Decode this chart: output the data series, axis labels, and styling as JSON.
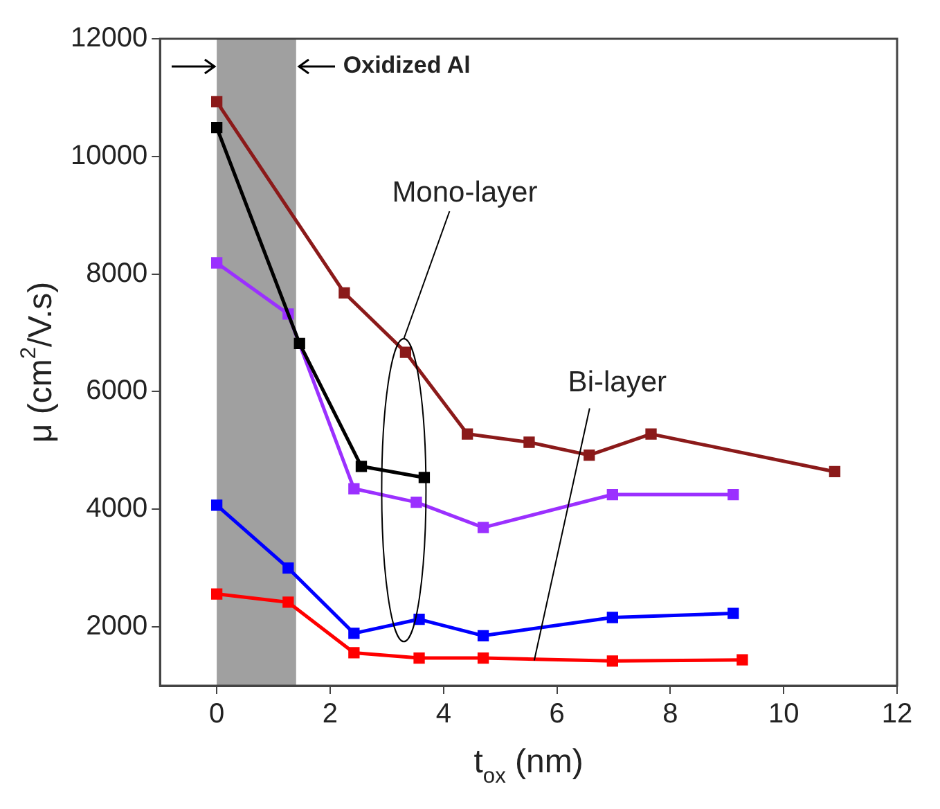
{
  "chart_data": {
    "type": "line",
    "xlabel": "t$_{ox}$ (nm)",
    "ylabel": "μ (cm$^{2}$/V.s)",
    "xlim": [
      -1,
      12
    ],
    "xticks": [
      0,
      2,
      4,
      6,
      8,
      10,
      12
    ],
    "ylim": [
      1000,
      12000
    ],
    "yticks": [
      2000,
      4000,
      6000,
      8000,
      10000,
      12000
    ],
    "grid": false,
    "legend": false,
    "marker": "square",
    "line_style": "solid",
    "bands": [
      {
        "axis": "x",
        "from": 0,
        "to": 1.4,
        "label": "Oxidized Al",
        "color": "#a0a0a0"
      }
    ],
    "annotations": [
      {
        "text": "Mono-layer",
        "x": 3.3,
        "y": 6900
      },
      {
        "text": "Bi-layer",
        "x": 5.6,
        "y": 1430
      }
    ],
    "series": [
      {
        "color": "#8b1a1a",
        "x": [
          0,
          2.25,
          3.33,
          4.42,
          5.51,
          6.57,
          7.66,
          10.9
        ],
        "values": [
          10930,
          7680,
          6670,
          5280,
          5140,
          4920,
          5280,
          4640
        ]
      },
      {
        "color": "#000000",
        "x": [
          0,
          1.46,
          2.55,
          3.66
        ],
        "values": [
          10490,
          6820,
          4730,
          4540
        ]
      },
      {
        "color": "#9b30ff",
        "x": [
          0,
          1.26,
          2.42,
          3.52,
          4.7,
          6.98,
          9.11
        ],
        "values": [
          8190,
          7320,
          4350,
          4120,
          3690,
          4250,
          4250
        ]
      },
      {
        "color": "#0000ff",
        "x": [
          0,
          1.26,
          2.42,
          3.57,
          4.7,
          6.98,
          9.11
        ],
        "values": [
          4070,
          3000,
          1890,
          2130,
          1850,
          2160,
          2230
        ]
      },
      {
        "color": "#ff0000",
        "x": [
          0,
          1.26,
          2.42,
          3.57,
          4.7,
          6.98,
          9.27
        ],
        "values": [
          2560,
          2420,
          1560,
          1470,
          1470,
          1420,
          1440
        ]
      }
    ]
  }
}
